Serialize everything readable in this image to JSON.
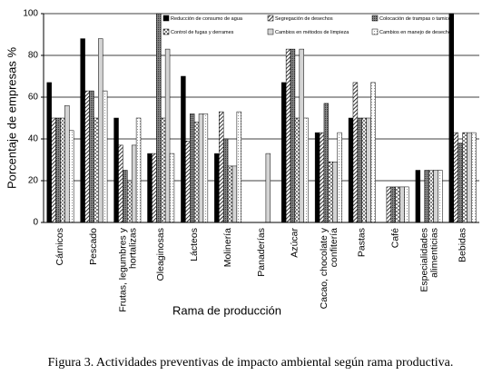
{
  "chart_data": {
    "type": "bar",
    "caption": "Figura 3. Actividades preventivas de impacto ambiental según rama productiva.",
    "x_label": "Rama de producción",
    "y_label": "Porcentaje de empresas %",
    "categories": [
      "Cárnicos",
      "Pescado",
      "Frutas, legumbres y hortalizas",
      "Oleaginosas",
      "Lácteos",
      "Molinería",
      "Panaderías",
      "Azúcar",
      "Cacao, chocolate y confitería",
      "Pastas",
      "Café",
      "Especialidades alimenticias",
      "Bebidas"
    ],
    "series": [
      {
        "name": "Reducción de consumo de agua",
        "color": "#000000",
        "pattern": "solid",
        "values": [
          67,
          88,
          50,
          33,
          70,
          33,
          0,
          67,
          43,
          50,
          0,
          25,
          100
        ]
      },
      {
        "name": "Segregación de desechos",
        "color": "#000000",
        "pattern": "diagonal",
        "values": [
          50,
          63,
          37,
          33,
          39,
          53,
          0,
          83,
          43,
          67,
          17,
          0,
          43
        ]
      },
      {
        "name": "Colocación de trampas o tamices",
        "color": "#666666",
        "pattern": "crosshatch",
        "values": [
          50,
          63,
          25,
          100,
          52,
          40,
          0,
          83,
          57,
          50,
          17,
          25,
          38
        ]
      },
      {
        "name": "Control de fugas y derrames",
        "color": "#000000",
        "pattern": "dashed",
        "values": [
          50,
          50,
          20,
          50,
          48,
          27,
          0,
          50,
          29,
          50,
          17,
          25,
          43
        ]
      },
      {
        "name": "Cambios en métodos de limpieza",
        "color": "#cccccc",
        "pattern": "light",
        "values": [
          56,
          88,
          37,
          83,
          52,
          27,
          33,
          83,
          29,
          50,
          17,
          25,
          43
        ]
      },
      {
        "name": "Cambios en manejo de desechos",
        "color": "#000000",
        "pattern": "dotted",
        "values": [
          44,
          63,
          50,
          33,
          52,
          53,
          0,
          50,
          43,
          67,
          17,
          25,
          43
        ]
      }
    ],
    "ylim": [
      0,
      100
    ],
    "yticks": [
      0,
      20,
      40,
      60,
      80,
      100
    ],
    "grid": true
  }
}
